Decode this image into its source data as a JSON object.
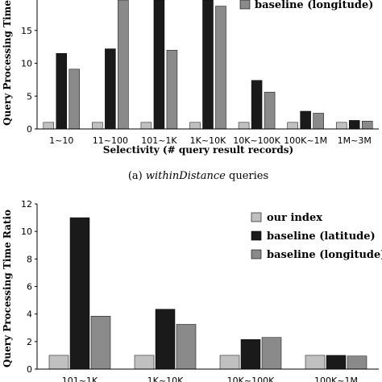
{
  "chart_data": [
    {
      "type": "bar",
      "caption_label": "(a)",
      "caption_italic": "withinDistance",
      "caption_rest": " queries",
      "xlabel": "Selectivity (# query result records)",
      "ylabel": "Query Processing Time",
      "ylim": [
        0,
        20
      ],
      "yticks": [
        "0",
        "5",
        "10",
        "15"
      ],
      "ytick_values": [
        0,
        5,
        10,
        15
      ],
      "grid": false,
      "legend_position": "top-right",
      "categories": [
        "1~10",
        "11~100",
        "101~1K",
        "1K~10K",
        "10K~100K",
        "100K~1M",
        "1M~3M"
      ],
      "series": [
        {
          "name": "",
          "color": "#c0c0c0",
          "values": [
            1.0,
            1.0,
            1.0,
            1.0,
            1.0,
            1.0,
            1.0
          ]
        },
        {
          "name": "",
          "color": "#1a1a1a",
          "values": [
            11.5,
            12.2,
            20,
            20,
            7.4,
            2.7,
            1.3
          ]
        },
        {
          "name": "baseline (longitude)",
          "color": "#8a8a8a",
          "values": [
            9.1,
            20,
            12.0,
            18.7,
            5.6,
            2.4,
            1.2
          ]
        }
      ]
    },
    {
      "type": "bar",
      "xlabel": "",
      "ylabel": "Query Processing Time Ratio",
      "ylim": [
        0,
        12
      ],
      "yticks": [
        "0",
        "2",
        "4",
        "6",
        "8",
        "10",
        "12"
      ],
      "ytick_values": [
        0,
        2,
        4,
        6,
        8,
        10,
        12
      ],
      "grid": false,
      "legend_position": "top-right",
      "categories": [
        "101~1K",
        "1K~10K",
        "10K~100K",
        "100K~1M"
      ],
      "series": [
        {
          "name": "our index",
          "color": "#c0c0c0",
          "values": [
            1.0,
            1.0,
            1.0,
            1.0
          ]
        },
        {
          "name": "baseline (latitude)",
          "color": "#1a1a1a",
          "values": [
            11.0,
            4.35,
            2.15,
            1.0
          ]
        },
        {
          "name": "baseline (longitude)",
          "color": "#8a8a8a",
          "values": [
            3.85,
            3.25,
            2.3,
            0.95
          ]
        }
      ]
    }
  ]
}
